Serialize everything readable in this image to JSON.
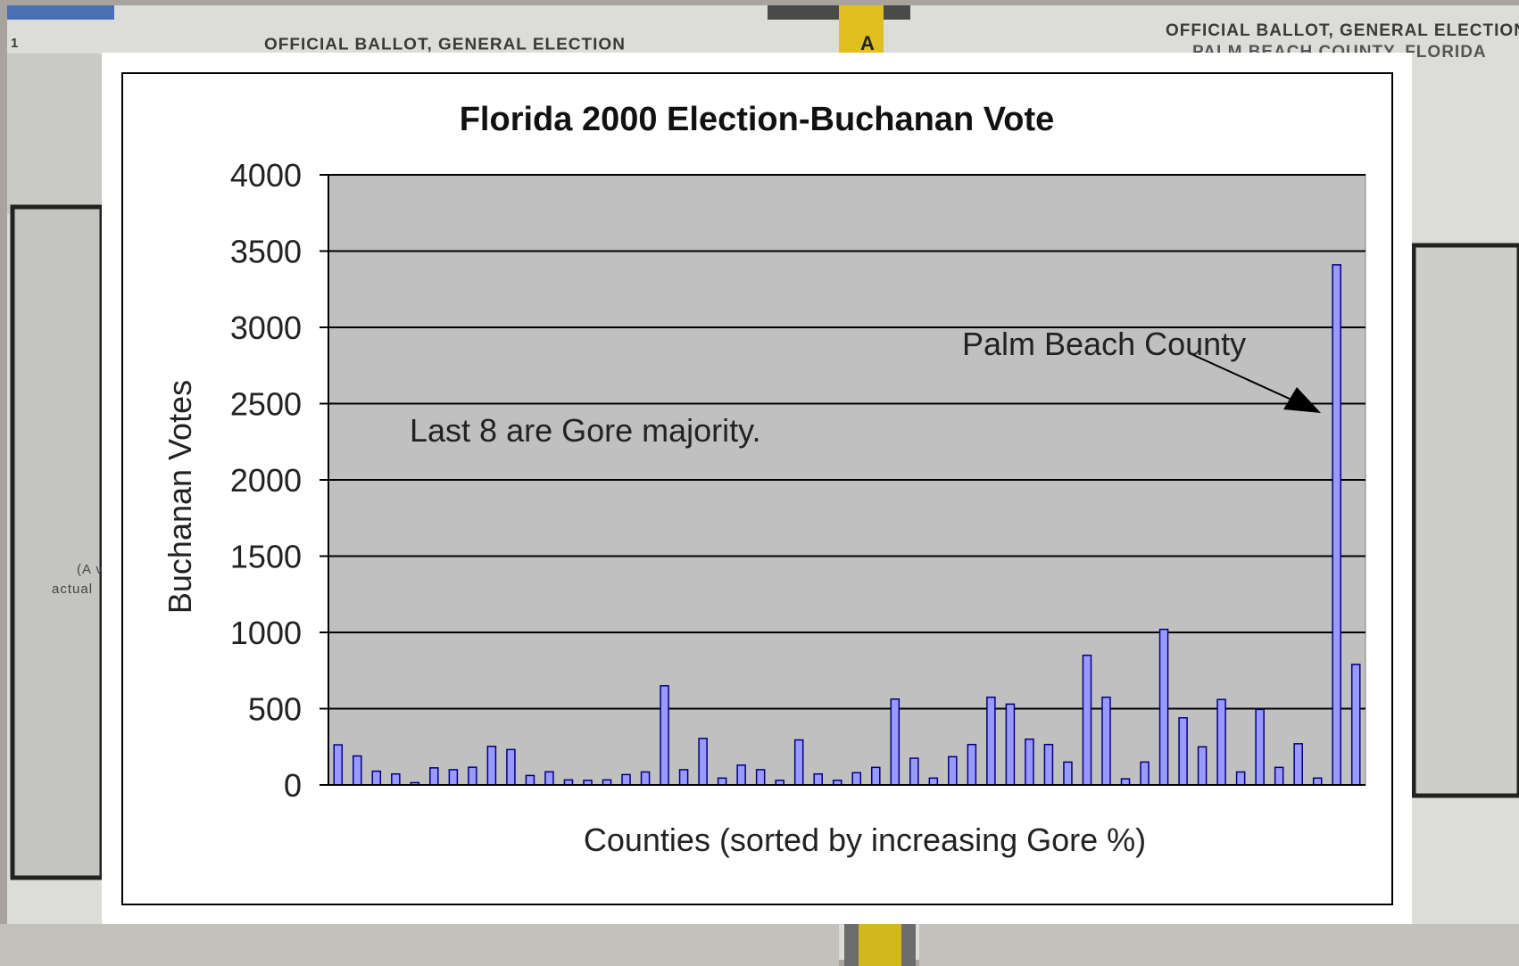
{
  "background": {
    "left_title": "OFFICIAL BALLOT, GENERAL ELECTION",
    "right_title": "OFFICIAL BALLOT, GENERAL ELECTION",
    "right_subtitle": "PALM BEACH COUNTY, FLORIDA",
    "page_number": "1",
    "tab_letter": "A",
    "side_text_1": "(A v",
    "side_text_2": "actual"
  },
  "colors": {
    "plot_area": "#c0c0c0",
    "bar_fill": "#9999ff",
    "bar_stroke": "#000080",
    "frame": "#ffffff"
  },
  "chart_data": {
    "type": "bar",
    "title": "Florida 2000 Election-Buchanan Vote",
    "xlabel": "Counties (sorted by increasing Gore %)",
    "ylabel": "Buchanan Votes",
    "ylim": [
      0,
      4000
    ],
    "yticks": [
      0,
      500,
      1000,
      1500,
      2000,
      2500,
      3000,
      3500,
      4000
    ],
    "ytick_labels": [
      "0",
      "500",
      "1000",
      "1500",
      "2000",
      "2500",
      "3000",
      "3500",
      "4000"
    ],
    "grid": true,
    "legend": false,
    "values": [
      263,
      190,
      90,
      72,
      15,
      112,
      100,
      116,
      253,
      232,
      62,
      86,
      33,
      30,
      33,
      68,
      85,
      650,
      100,
      305,
      45,
      130,
      100,
      30,
      295,
      72,
      30,
      80,
      115,
      563,
      175,
      45,
      185,
      265,
      575,
      530,
      300,
      265,
      150,
      850,
      575,
      40,
      150,
      1020,
      440,
      250,
      560,
      85,
      495,
      115,
      270,
      45,
      3410,
      790
    ],
    "annotations": [
      {
        "text": "Last 8 are Gore majority."
      },
      {
        "text": "Palm Beach County",
        "points_to_index": 52
      }
    ]
  }
}
